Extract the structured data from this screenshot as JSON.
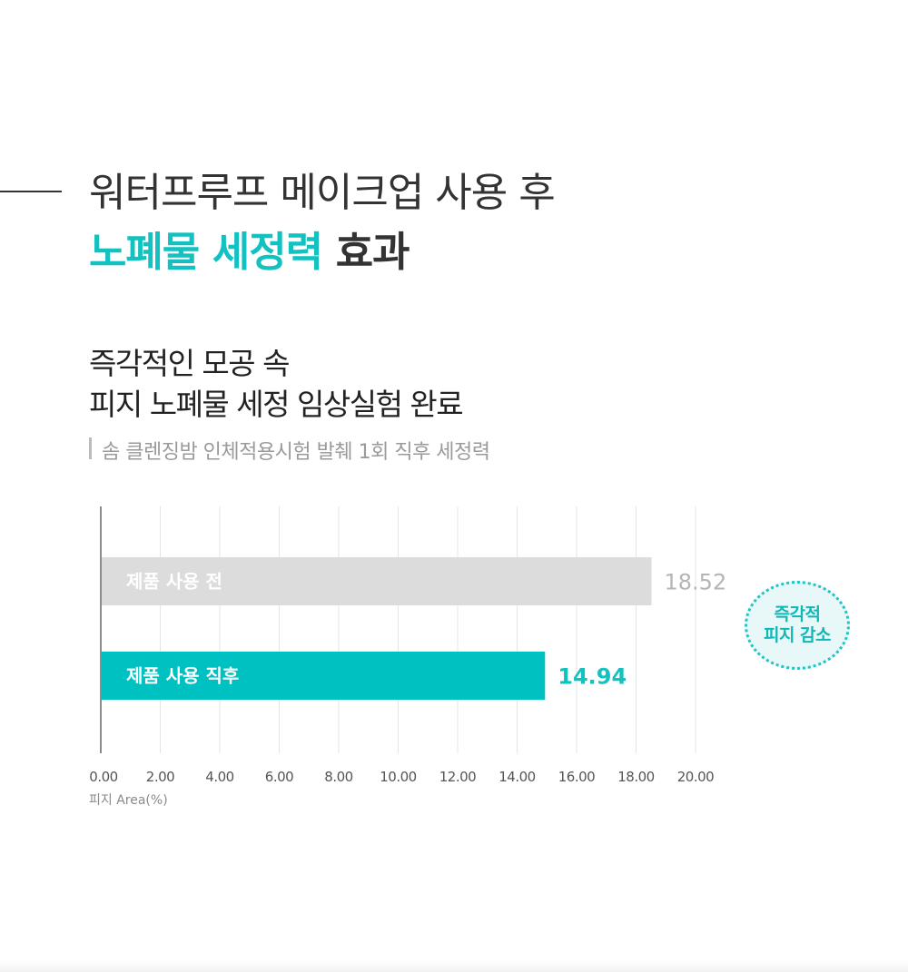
{
  "header": {
    "line1": "워터프루프 메이크업 사용 후",
    "line2_accent": "노폐물 세정력",
    "line2_rest": " 효과"
  },
  "subtitle": {
    "line1": "즉각적인 모공 속",
    "line2": "피지 노폐물 세정 임상실험 완료"
  },
  "note": "솜 클렌징밤 인체적용시험 발췌 1회 직후 세정력",
  "badge": {
    "line1": "즉각적",
    "line2": "피지 감소"
  },
  "chart_data": {
    "type": "bar",
    "orientation": "horizontal",
    "categories": [
      "제품 사용 전",
      "제품 사용 직후"
    ],
    "values": [
      18.52,
      14.94
    ],
    "value_labels": [
      "18.52",
      "14.94"
    ],
    "colors": [
      "#dcdcdc",
      "#00c1c2"
    ],
    "label_colors": [
      "#ffffff",
      "#ffffff"
    ],
    "value_label_colors": [
      "#b5b5b5",
      "#12c1c0"
    ],
    "xlim": [
      0,
      20
    ],
    "xticks": [
      "0.00",
      "2.00",
      "4.00",
      "6.00",
      "8.00",
      "10.00",
      "12.00",
      "14.00",
      "16.00",
      "18.00",
      "20.00"
    ],
    "xlabel": "피지 Area(%)",
    "grid": true
  }
}
